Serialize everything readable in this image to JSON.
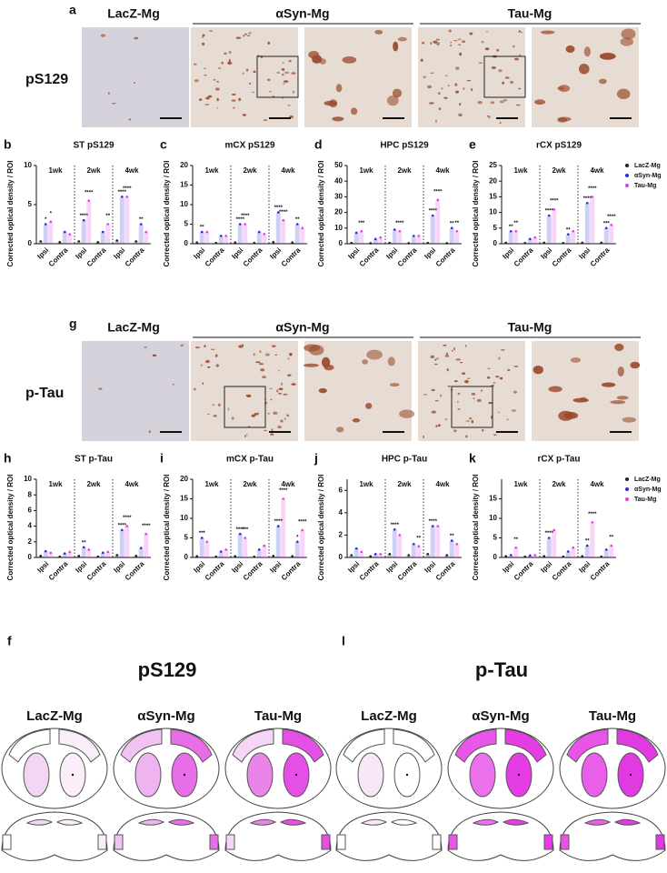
{
  "image_rows": [
    {
      "letter": "a",
      "label": "pS129",
      "groups": [
        "LacZ-Mg",
        "αSyn-Mg",
        "Tau-Mg"
      ]
    },
    {
      "letter": "g",
      "label": "p-Tau",
      "groups": [
        "LacZ-Mg",
        "αSyn-Mg",
        "Tau-Mg"
      ]
    }
  ],
  "chart_data": [
    {
      "type": "bar",
      "letter": "b",
      "title": "ST pS129",
      "ylabel": "Corrected optical density / ROI",
      "weeks": [
        "1wk",
        "2wk",
        "4wk"
      ],
      "categories": [
        "Ipsi",
        "Contra",
        "Ipsi",
        "Contra",
        "Ipsi",
        "Contra"
      ],
      "ylim": [
        0,
        10
      ],
      "yticks": [
        0,
        5,
        10
      ],
      "series": [
        {
          "name": "LacZ-Mg",
          "color": "#222222",
          "values": [
            0.3,
            0.2,
            0.3,
            0.2,
            0.4,
            0.3
          ]
        },
        {
          "name": "αSyn-Mg",
          "color": "#2b2bd9",
          "values": [
            2.5,
            1.5,
            3,
            1.5,
            6,
            2.5
          ],
          "stars": [
            "*",
            null,
            "****",
            null,
            "****",
            "**"
          ]
        },
        {
          "name": "Tau-Mg",
          "color": "#e040e0",
          "values": [
            2.8,
            1.2,
            5.5,
            2.5,
            6,
            1.5
          ],
          "stars": [
            "*",
            null,
            "****",
            "**",
            "****",
            null
          ]
        }
      ]
    },
    {
      "type": "bar",
      "letter": "c",
      "title": "mCX pS129",
      "ylabel": "Corrected optical density / ROI",
      "weeks": [
        "1wk",
        "2wk",
        "4wk"
      ],
      "categories": [
        "Ipsi",
        "Contra",
        "Ipsi",
        "Contra",
        "Ipsi",
        "Contra"
      ],
      "ylim": [
        0,
        20
      ],
      "yticks": [
        0,
        5,
        10,
        15,
        20
      ],
      "series": [
        {
          "name": "LacZ-Mg",
          "color": "#222222",
          "values": [
            0.3,
            0.2,
            0.3,
            0.2,
            0.4,
            0.3
          ]
        },
        {
          "name": "αSyn-Mg",
          "color": "#2b2bd9",
          "values": [
            3,
            2,
            5,
            3,
            8,
            5
          ],
          "stars": [
            "**",
            null,
            "****",
            null,
            "****",
            "**"
          ]
        },
        {
          "name": "Tau-Mg",
          "color": "#e040e0",
          "values": [
            3,
            2,
            5,
            2.5,
            6,
            4
          ],
          "stars": [
            null,
            null,
            "****",
            null,
            "****",
            null
          ]
        }
      ]
    },
    {
      "type": "bar",
      "letter": "d",
      "title": "HPC pS129",
      "ylabel": "Corrected optical density / ROI",
      "weeks": [
        "1wk",
        "2wk",
        "4wk"
      ],
      "categories": [
        "Ipsi",
        "Contra",
        "Ipsi",
        "Contra",
        "Ipsi",
        "Contra"
      ],
      "ylim": [
        0,
        50
      ],
      "yticks": [
        0,
        10,
        20,
        30,
        40,
        50
      ],
      "series": [
        {
          "name": "LacZ-Mg",
          "color": "#222222",
          "values": [
            0.5,
            0.3,
            0.5,
            0.3,
            0.5,
            0.3
          ]
        },
        {
          "name": "αSyn-Mg",
          "color": "#2b2bd9",
          "values": [
            7,
            3,
            9,
            5,
            18,
            10
          ],
          "stars": [
            null,
            null,
            null,
            null,
            "****",
            "**"
          ]
        },
        {
          "name": "Tau-Mg",
          "color": "#e040e0",
          "values": [
            8,
            4,
            8,
            5,
            28,
            8
          ],
          "stars": [
            "***",
            null,
            "****",
            null,
            "****",
            "**"
          ]
        }
      ]
    },
    {
      "type": "bar",
      "letter": "e",
      "title": "rCX pS129",
      "ylabel": "Corrected optical density / ROI",
      "weeks": [
        "1wk",
        "2wk",
        "4wk"
      ],
      "categories": [
        "Ipsi",
        "Contra",
        "Ipsi",
        "Contra",
        "Ipsi",
        "Contra"
      ],
      "ylim": [
        0,
        25
      ],
      "yticks": [
        0,
        5,
        10,
        15,
        20,
        25
      ],
      "series": [
        {
          "name": "LacZ-Mg",
          "color": "#222222",
          "values": [
            0.3,
            0.2,
            0.3,
            0.2,
            0.3,
            0.3
          ]
        },
        {
          "name": "αSyn-Mg",
          "color": "#2b2bd9",
          "values": [
            4,
            1.5,
            9,
            3,
            13,
            5
          ],
          "stars": [
            "**",
            null,
            "****",
            "**",
            "****",
            "***"
          ]
        },
        {
          "name": "Tau-Mg",
          "color": "#e040e0",
          "values": [
            4,
            2,
            11,
            4,
            15,
            6
          ],
          "stars": [
            "**",
            null,
            "****",
            null,
            "****",
            "****"
          ]
        }
      ]
    },
    {
      "type": "bar",
      "letter": "h",
      "title": "ST p-Tau",
      "ylabel": "Corrected optical density / ROI",
      "weeks": [
        "1wk",
        "2wk",
        "4wk"
      ],
      "categories": [
        "Ipsi",
        "Contra",
        "Ipsi",
        "Contra",
        "Ipsi",
        "Contra"
      ],
      "ylim": [
        0,
        10
      ],
      "yticks": [
        0,
        2,
        4,
        6,
        8,
        10
      ],
      "series": [
        {
          "name": "LacZ-Mg",
          "color": "#222222",
          "values": [
            0.2,
            0.1,
            0.2,
            0.1,
            0.3,
            0.2
          ]
        },
        {
          "name": "αSyn-Mg",
          "color": "#2b2bd9",
          "values": [
            0.8,
            0.5,
            1.3,
            0.6,
            3.5,
            1.2
          ],
          "stars": [
            null,
            null,
            "**",
            null,
            "****",
            null
          ]
        },
        {
          "name": "Tau-Mg",
          "color": "#e040e0",
          "values": [
            0.6,
            0.7,
            1.0,
            0.7,
            4,
            3
          ],
          "stars": [
            null,
            null,
            null,
            null,
            "****",
            "****"
          ]
        }
      ]
    },
    {
      "type": "bar",
      "letter": "i",
      "title": "mCX p-Tau",
      "ylabel": "Corrected optical density / ROI",
      "weeks": [
        "1wk",
        "2wk",
        "4wk"
      ],
      "categories": [
        "Ipsi",
        "Contra",
        "Ipsi",
        "Contra",
        "Ipsi",
        "Contra"
      ],
      "ylim": [
        0,
        20
      ],
      "yticks": [
        0,
        5,
        10,
        15,
        20
      ],
      "series": [
        {
          "name": "LacZ-Mg",
          "color": "#222222",
          "values": [
            0.3,
            0.2,
            0.3,
            0.2,
            0.4,
            0.3
          ]
        },
        {
          "name": "αSyn-Mg",
          "color": "#2b2bd9",
          "values": [
            5,
            1.5,
            6,
            2,
            8,
            4
          ],
          "stars": [
            "***",
            null,
            "****",
            null,
            "****",
            "*"
          ]
        },
        {
          "name": "Tau-Mg",
          "color": "#e040e0",
          "values": [
            4,
            2,
            5,
            3,
            15,
            7
          ],
          "stars": [
            null,
            null,
            "***",
            null,
            "****",
            "****"
          ]
        }
      ]
    },
    {
      "type": "bar",
      "letter": "j",
      "title": "HPC p-Tau",
      "ylabel": "Corrected optical density / ROI",
      "weeks": [
        "1wk",
        "2wk",
        "4wk"
      ],
      "categories": [
        "Ipsi",
        "Contra",
        "Ipsi",
        "Contra",
        "Ipsi",
        "Contra"
      ],
      "ylim": [
        0,
        7
      ],
      "yticks": [
        0,
        2,
        4,
        6
      ],
      "series": [
        {
          "name": "LacZ-Mg",
          "color": "#222222",
          "values": [
            0.2,
            0.1,
            0.3,
            0.2,
            0.3,
            0.2
          ]
        },
        {
          "name": "αSyn-Mg",
          "color": "#2b2bd9",
          "values": [
            0.8,
            0.3,
            2.5,
            1.2,
            2.8,
            1.5
          ],
          "stars": [
            null,
            null,
            "****",
            null,
            "****",
            "**"
          ]
        },
        {
          "name": "Tau-Mg",
          "color": "#e040e0",
          "values": [
            0.5,
            0.3,
            2,
            1,
            2.8,
            1.2
          ],
          "stars": [
            null,
            null,
            null,
            "**",
            null,
            null
          ]
        }
      ]
    },
    {
      "type": "bar",
      "letter": "k",
      "title": "rCX p-Tau",
      "ylabel": "Corrected optical density / ROI",
      "weeks": [
        "1wk",
        "2wk",
        "4wk"
      ],
      "categories": [
        "Ipsi",
        "Contra",
        "Ipsi",
        "Contra",
        "Ipsi",
        "Contra"
      ],
      "ylim": [
        0,
        20
      ],
      "yticks": [
        0,
        5,
        10,
        15
      ],
      "series": [
        {
          "name": "LacZ-Mg",
          "color": "#222222",
          "values": [
            0.3,
            0.2,
            0.3,
            0.2,
            0.3,
            0.2
          ]
        },
        {
          "name": "αSyn-Mg",
          "color": "#2b2bd9",
          "values": [
            0.6,
            0.5,
            5,
            1.5,
            3,
            2
          ],
          "stars": [
            null,
            null,
            "****",
            null,
            "**",
            null
          ]
        },
        {
          "name": "Tau-Mg",
          "color": "#e040e0",
          "values": [
            2.5,
            0.6,
            7,
            2.5,
            9,
            3
          ],
          "stars": [
            "**",
            null,
            null,
            null,
            "****",
            "**"
          ]
        }
      ]
    }
  ],
  "brain_maps": [
    {
      "letter": "f",
      "title": "pS129",
      "groups": [
        "LacZ-Mg",
        "αSyn-Mg",
        "Tau-Mg"
      ]
    },
    {
      "letter": "l",
      "title": "p-Tau",
      "groups": [
        "LacZ-Mg",
        "αSyn-Mg",
        "Tau-Mg"
      ]
    }
  ]
}
